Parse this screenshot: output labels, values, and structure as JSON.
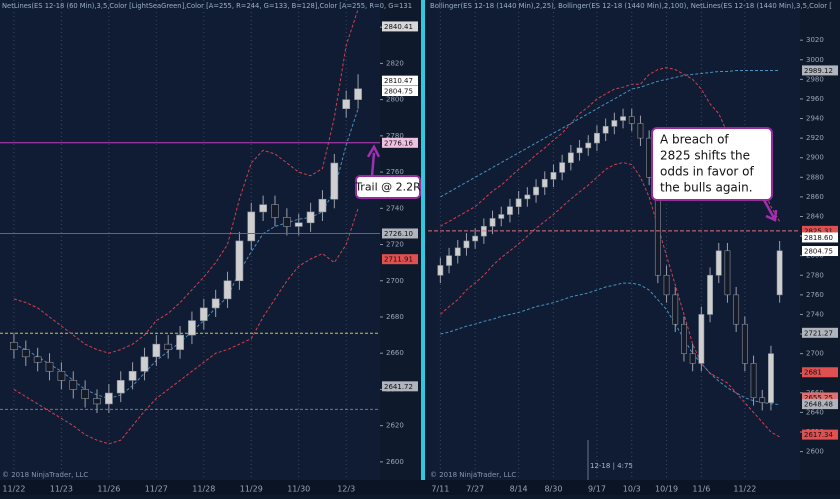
{
  "chart_data": [
    {
      "type": "candlestick",
      "title": "NetLines(ES 12-18 (60 Min),3,5,Color [LightSeaGreen],Color [A=255, R=244, G=133, B=128],Color [A=255, R=0, G=131",
      "categories": [
        "11/22",
        null,
        null,
        null,
        "11/23",
        null,
        null,
        null,
        "11/26",
        null,
        null,
        null,
        "11/27",
        null,
        null,
        null,
        "11/28",
        null,
        null,
        null,
        "11/29",
        null,
        null,
        null,
        "11/30",
        null,
        null,
        null,
        "12/3",
        null
      ],
      "open": [
        2666,
        2662,
        2658,
        2655,
        2650,
        2645,
        2640,
        2635,
        2632,
        2638,
        2645,
        2650,
        2658,
        2665,
        2662,
        2670,
        2678,
        2685,
        2690,
        2700,
        2722,
        2738,
        2742,
        2735,
        2730,
        2732,
        2738,
        2745,
        2795,
        2800
      ],
      "high": [
        2671,
        2667,
        2663,
        2660,
        2655,
        2650,
        2645,
        2640,
        2643,
        2650,
        2655,
        2663,
        2670,
        2670,
        2675,
        2683,
        2690,
        2695,
        2705,
        2727,
        2743,
        2747,
        2747,
        2740,
        2737,
        2743,
        2750,
        2770,
        2805,
        2814
      ],
      "low": [
        2657,
        2653,
        2650,
        2645,
        2640,
        2635,
        2630,
        2627,
        2627,
        2633,
        2640,
        2645,
        2653,
        2657,
        2657,
        2665,
        2673,
        2680,
        2685,
        2695,
        2717,
        2733,
        2730,
        2725,
        2725,
        2727,
        2733,
        2740,
        2790,
        2795
      ],
      "close": [
        2662,
        2658,
        2655,
        2650,
        2645,
        2640,
        2635,
        2632,
        2638,
        2645,
        2650,
        2658,
        2665,
        2662,
        2670,
        2678,
        2685,
        2690,
        2700,
        2722,
        2738,
        2742,
        2735,
        2730,
        2732,
        2738,
        2745,
        2765,
        2800,
        2806
      ],
      "up_color": "#cfcfcf",
      "down_color": "#151a28",
      "bands": [
        {
          "color": "#d04050",
          "dash": true,
          "values": [
            2690,
            2688,
            2685,
            2680,
            2675,
            2670,
            2665,
            2662,
            2660,
            2662,
            2665,
            2670,
            2678,
            2682,
            2688,
            2695,
            2702,
            2710,
            2720,
            2745,
            2765,
            2772,
            2770,
            2765,
            2760,
            2758,
            2762,
            2790,
            2830,
            2850
          ]
        },
        {
          "color": "#d04050",
          "dash": true,
          "values": [
            2640,
            2636,
            2632,
            2628,
            2624,
            2620,
            2615,
            2612,
            2610,
            2612,
            2620,
            2628,
            2635,
            2640,
            2645,
            2650,
            2655,
            2660,
            2662,
            2665,
            2668,
            2680,
            2690,
            2700,
            2708,
            2712,
            2715,
            2710,
            2720,
            2740
          ]
        },
        {
          "color": "#4a90c0",
          "dash": true,
          "values": [
            2665,
            2662,
            2658,
            2654,
            2650,
            2645,
            2640,
            2637,
            2635,
            2637,
            2642,
            2649,
            2656,
            2661,
            2666,
            2672,
            2678,
            2685,
            2691,
            2705,
            2716,
            2726,
            2730,
            2732,
            2734,
            2735,
            2738,
            2750,
            2775,
            2795
          ]
        }
      ],
      "ylim": [
        2590,
        2855
      ],
      "yticks": [
        2600,
        2620,
        2640,
        2660,
        2680,
        2700,
        2720,
        2740,
        2760,
        2780,
        2800,
        2820,
        2840
      ],
      "levels": [
        {
          "value": 2671,
          "color": "#c8c840"
        },
        {
          "value": 2629,
          "color": "#707888"
        }
      ],
      "markers": [
        {
          "value": "2840.41",
          "color": "#d8d8d8"
        },
        {
          "value": "2810.47",
          "color": "#ffffff"
        },
        {
          "value": "2804.75",
          "color": "#ffffff"
        },
        {
          "value": "2776.16",
          "color": "#f0c0e0",
          "line": "#c040c0"
        },
        {
          "value": "2726.10",
          "color": "#b0b4bc",
          "line": "#606878"
        },
        {
          "value": "2711.91",
          "color": "#e05050"
        },
        {
          "value": "2641.72",
          "color": "#b0b4bc"
        }
      ],
      "annotation": [
        "Trail @ 2.2R"
      ],
      "copyright": "© 2018 NinjaTrader, LLC"
    },
    {
      "type": "candlestick",
      "title": "Bollinger(ES 12-18 (1440 Min),2,25), Bollinger(ES 12-18 (1440 Min),2,100), NetLines(ES 12-18 (1440 Min),3,5,Color [",
      "categories": [
        "7/11",
        null,
        null,
        null,
        "7/27",
        null,
        null,
        null,
        null,
        "8/14",
        null,
        null,
        null,
        "8/30",
        null,
        null,
        null,
        null,
        "9/17",
        null,
        null,
        null,
        "10/3",
        null,
        null,
        null,
        "10/19",
        null,
        null,
        null,
        "11/6",
        null,
        null,
        null,
        null,
        "11/22",
        null,
        null,
        null,
        null
      ],
      "open": [
        2780,
        2790,
        2800,
        2808,
        2815,
        2820,
        2830,
        2838,
        2842,
        2850,
        2858,
        2862,
        2870,
        2878,
        2885,
        2895,
        2905,
        2910,
        2915,
        2925,
        2932,
        2938,
        2942,
        2935,
        2920,
        2880,
        2780,
        2760,
        2730,
        2700,
        2690,
        2740,
        2780,
        2805,
        2760,
        2730,
        2690,
        2655,
        2650,
        2760
      ],
      "high": [
        2798,
        2808,
        2816,
        2823,
        2828,
        2838,
        2846,
        2850,
        2858,
        2866,
        2870,
        2878,
        2886,
        2893,
        2903,
        2913,
        2918,
        2923,
        2933,
        2940,
        2946,
        2950,
        2950,
        2943,
        2928,
        2888,
        2790,
        2768,
        2738,
        2710,
        2748,
        2788,
        2813,
        2813,
        2768,
        2738,
        2698,
        2663,
        2708,
        2815
      ],
      "low": [
        2772,
        2782,
        2792,
        2800,
        2807,
        2812,
        2822,
        2830,
        2834,
        2842,
        2850,
        2854,
        2862,
        2870,
        2877,
        2887,
        2897,
        2902,
        2907,
        2917,
        2924,
        2930,
        2927,
        2912,
        2872,
        2772,
        2752,
        2722,
        2692,
        2682,
        2682,
        2732,
        2772,
        2752,
        2722,
        2682,
        2647,
        2642,
        2642,
        2752
      ],
      "close": [
        2790,
        2800,
        2808,
        2815,
        2820,
        2830,
        2838,
        2842,
        2850,
        2858,
        2862,
        2870,
        2878,
        2885,
        2895,
        2905,
        2910,
        2915,
        2925,
        2932,
        2938,
        2942,
        2935,
        2920,
        2880,
        2780,
        2760,
        2730,
        2700,
        2690,
        2740,
        2780,
        2805,
        2760,
        2730,
        2690,
        2655,
        2650,
        2700,
        2805
      ],
      "up_color": "#cfcfcf",
      "down_color": "#151a28",
      "bands": [
        {
          "color": "#d04050",
          "dash": true,
          "values": [
            2830,
            2835,
            2840,
            2845,
            2850,
            2858,
            2866,
            2872,
            2880,
            2888,
            2895,
            2903,
            2910,
            2918,
            2925,
            2935,
            2945,
            2952,
            2960,
            2965,
            2970,
            2972,
            2975,
            2975,
            2985,
            2990,
            2992,
            2990,
            2985,
            2980,
            2970,
            2955,
            2945,
            2925,
            2915,
            2900,
            2885,
            2870,
            2850,
            2835
          ]
        },
        {
          "color": "#d04050",
          "dash": true,
          "values": [
            2740,
            2748,
            2755,
            2765,
            2772,
            2780,
            2790,
            2798,
            2805,
            2812,
            2820,
            2828,
            2835,
            2842,
            2850,
            2858,
            2865,
            2872,
            2880,
            2888,
            2893,
            2895,
            2893,
            2880,
            2860,
            2830,
            2800,
            2770,
            2740,
            2710,
            2690,
            2680,
            2675,
            2670,
            2660,
            2650,
            2640,
            2630,
            2620,
            2615
          ]
        },
        {
          "color": "#4a90c0",
          "dash": true,
          "values": [
            2860,
            2865,
            2870,
            2875,
            2880,
            2885,
            2890,
            2895,
            2900,
            2905,
            2910,
            2915,
            2920,
            2925,
            2930,
            2935,
            2940,
            2945,
            2950,
            2955,
            2960,
            2965,
            2970,
            2972,
            2975,
            2978,
            2980,
            2982,
            2984,
            2985,
            2986,
            2987,
            2988,
            2988,
            2989,
            2989,
            2989,
            2989,
            2989,
            2989
          ]
        },
        {
          "color": "#4a90c0",
          "dash": true,
          "values": [
            2720,
            2722,
            2725,
            2728,
            2730,
            2733,
            2735,
            2738,
            2740,
            2742,
            2745,
            2748,
            2750,
            2752,
            2755,
            2758,
            2760,
            2762,
            2765,
            2768,
            2770,
            2772,
            2772,
            2770,
            2765,
            2755,
            2745,
            2730,
            2715,
            2700,
            2690,
            2680,
            2672,
            2665,
            2660,
            2655,
            2652,
            2650,
            2649,
            2648
          ]
        }
      ],
      "ylim": [
        2571,
        3061
      ],
      "yticks": [
        2600,
        2620,
        2640,
        2660,
        2680,
        2700,
        2720,
        2740,
        2760,
        2780,
        2800,
        2820,
        2840,
        2860,
        2880,
        2900,
        2920,
        2940,
        2960,
        2980,
        3000,
        3020
      ],
      "levels": [],
      "markers": [
        {
          "value": "2989.12",
          "color": "#b0b4bc"
        },
        {
          "value": "2825.31",
          "color": "#e05050",
          "line": "#e07080"
        },
        {
          "value": "2818.60",
          "color": "#ffffff"
        },
        {
          "value": "2804.75",
          "color": "#ffffff"
        },
        {
          "value": "2721.27",
          "color": "#b0b4bc"
        },
        {
          "value": "2681",
          "color": "#e05050"
        },
        {
          "value": "2655.25",
          "color": "#e07070"
        },
        {
          "value": "2648.48",
          "color": "#b0b4bc"
        },
        {
          "value": "2617.34",
          "color": "#e05050"
        }
      ],
      "annotation": [
        "A breach of",
        "2825 shifts the",
        "odds in favor of",
        "the bulls again."
      ],
      "footer_label": "12-18 | 4:75",
      "copyright": "© 2018 NinjaTrader, LLC"
    }
  ]
}
